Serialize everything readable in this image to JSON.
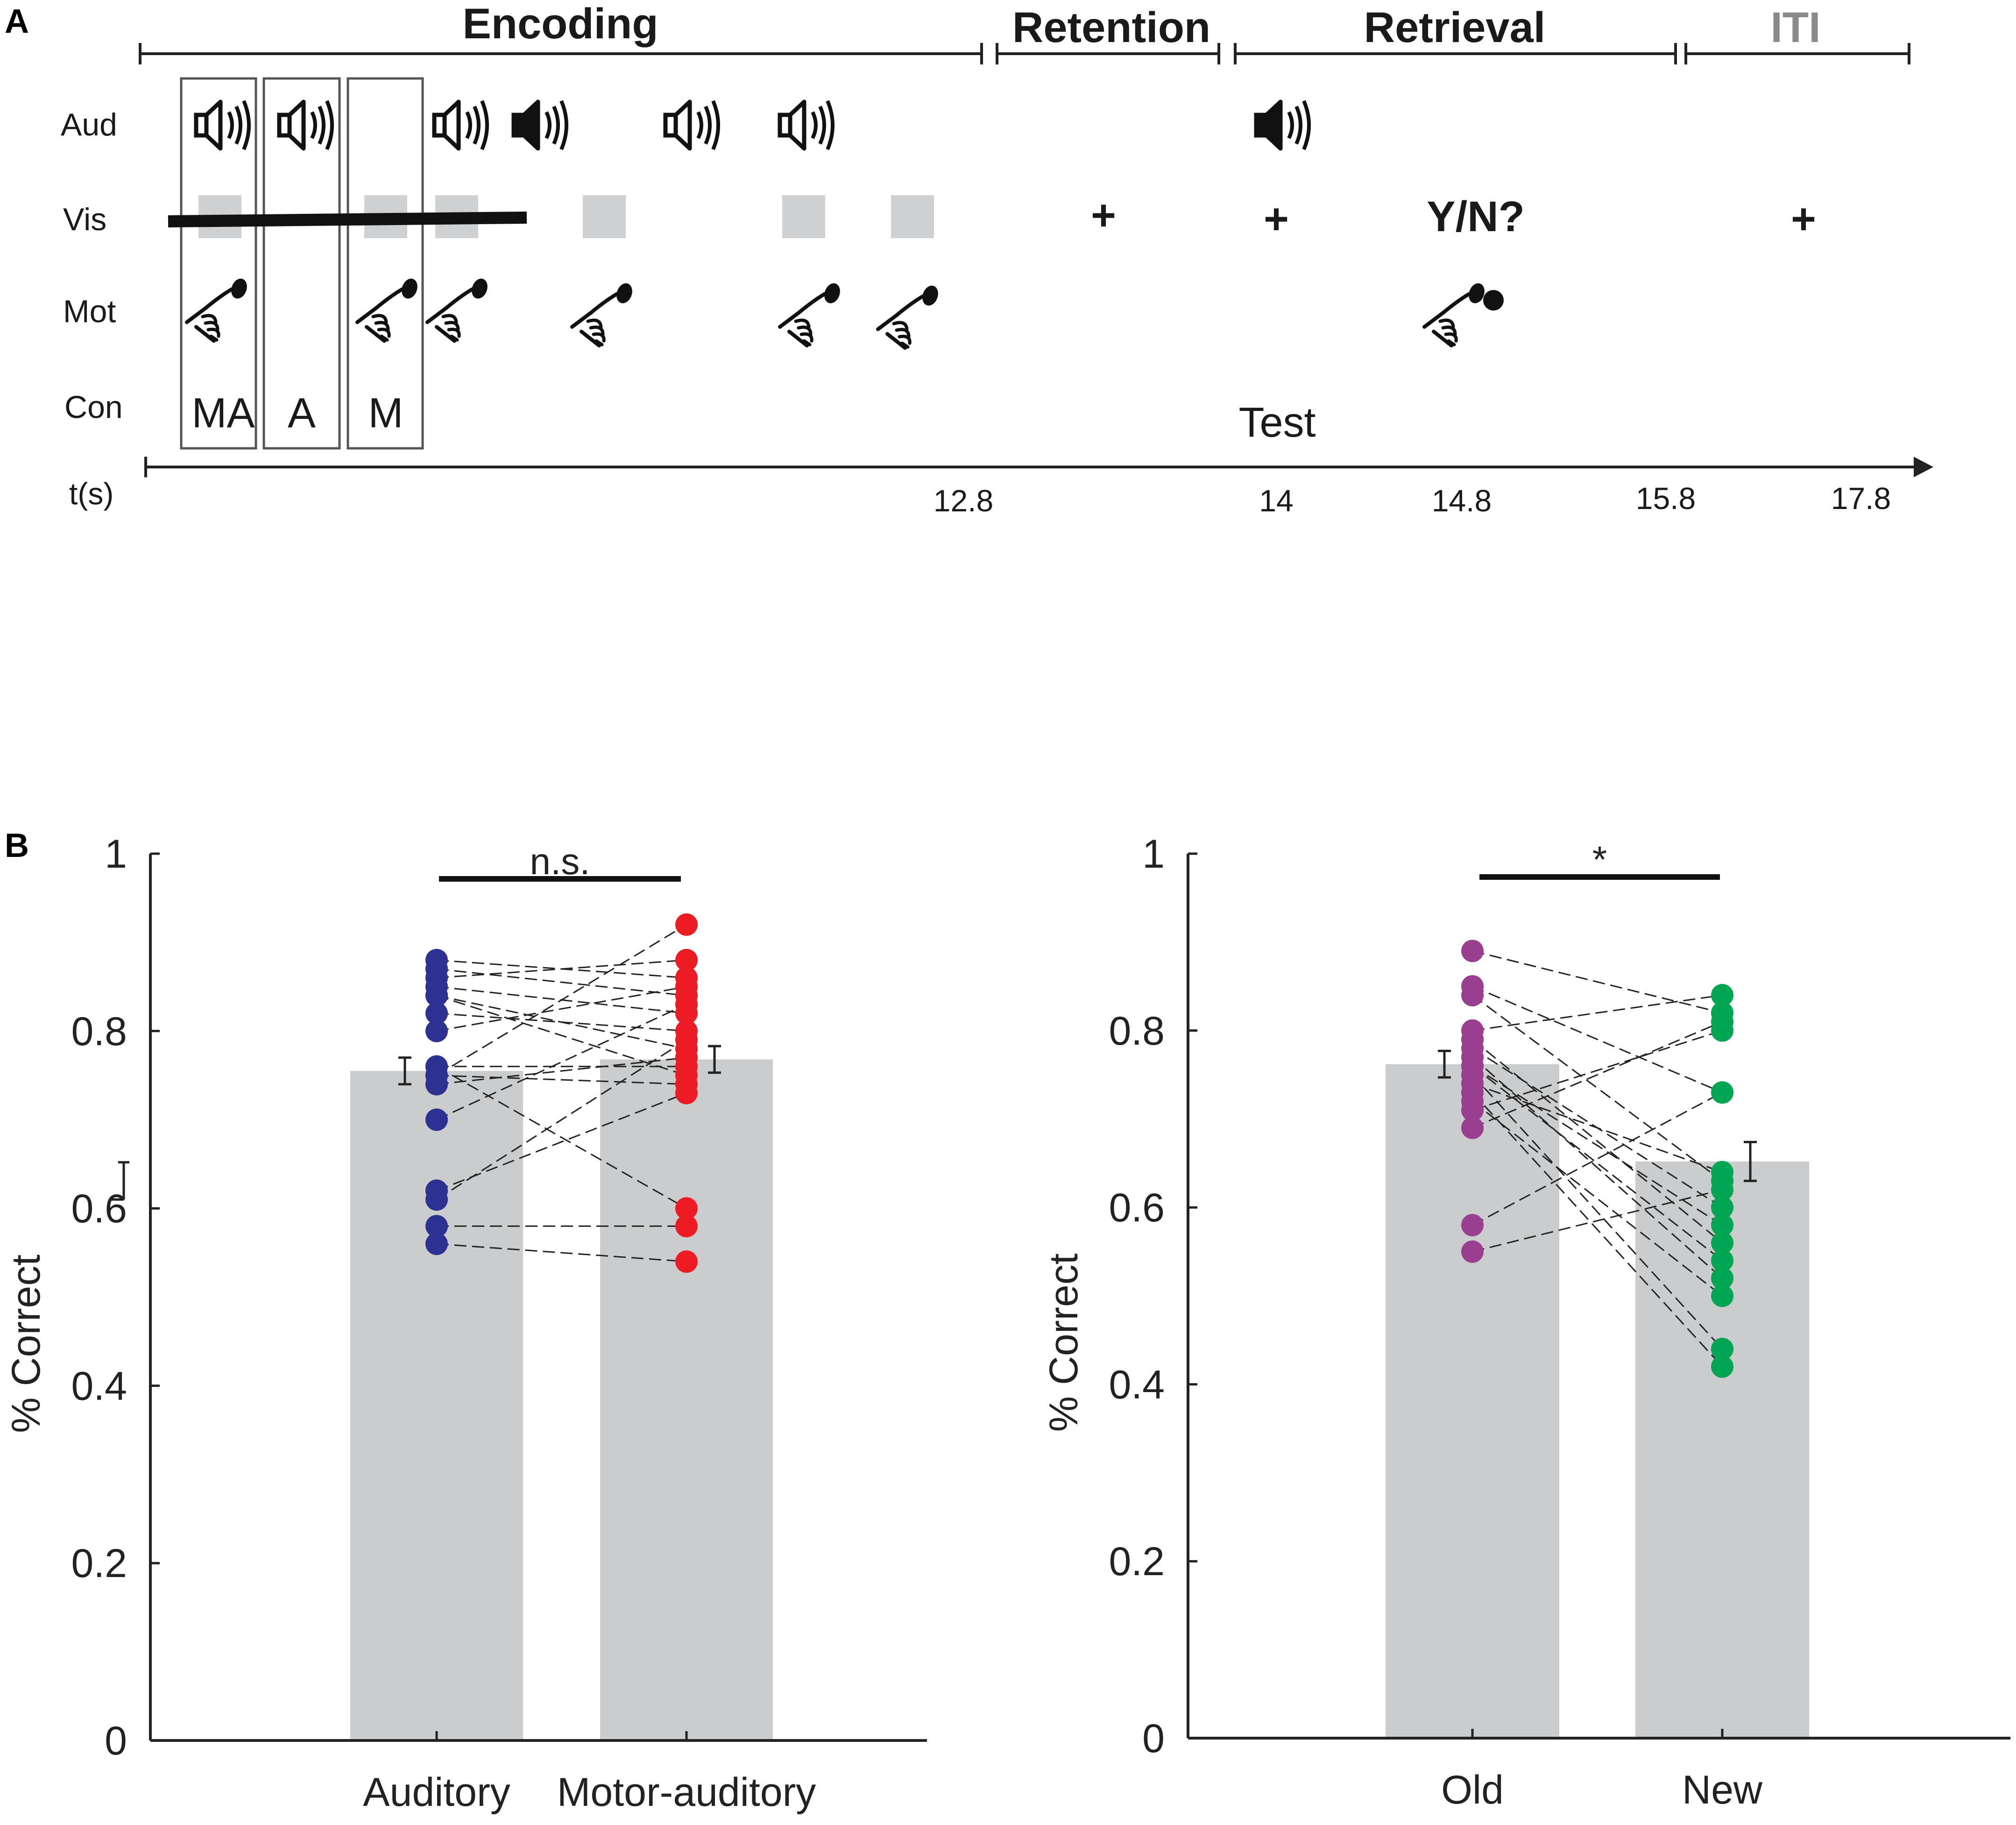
{
  "panel_a": {
    "label": "A",
    "phases": {
      "encoding": "Encoding",
      "retention": "Retention",
      "retrieval": "Retrieval",
      "iti": "ITI"
    },
    "rows": {
      "aud": "Aud",
      "vis": "Vis",
      "mot": "Mot",
      "con": "Con"
    },
    "conditions": [
      "MA",
      "A",
      "M"
    ],
    "test_label": "Test",
    "question": "Y/N?",
    "fixation": "+",
    "time_label": "t(s)",
    "time_ticks": [
      "12.8",
      "14",
      "14.8",
      "15.8",
      "17.8"
    ],
    "icons": [
      "speaker-icon",
      "pressing-hand-icon",
      "gray-square-icon"
    ]
  },
  "panel_b": {
    "label": "B"
  },
  "chart_data": [
    {
      "type": "bar",
      "title": "",
      "ylabel": "% Correct",
      "xlabel": "",
      "ylim": [
        0,
        1
      ],
      "yticks": [
        "0",
        "0.2",
        "0.4",
        "0.6",
        "0.8",
        "1"
      ],
      "categories": [
        "Auditory",
        "Motor-auditory"
      ],
      "means": [
        0.755,
        0.768
      ],
      "sem": [
        0.015,
        0.015
      ],
      "significance": "n.s.",
      "colors": [
        "#2c3192",
        "#ed1c24"
      ],
      "bar_color": "#cbcccd",
      "subjects": [
        [
          0.88,
          0.86
        ],
        [
          0.87,
          0.84
        ],
        [
          0.86,
          0.88
        ],
        [
          0.85,
          0.82
        ],
        [
          0.84,
          0.78
        ],
        [
          0.82,
          0.8
        ],
        [
          0.8,
          0.85
        ],
        [
          0.76,
          0.76
        ],
        [
          0.75,
          0.74
        ],
        [
          0.74,
          0.77
        ],
        [
          0.7,
          0.83
        ],
        [
          0.62,
          0.73
        ],
        [
          0.61,
          0.79
        ],
        [
          0.58,
          0.58
        ],
        [
          0.56,
          0.54
        ],
        [
          0.76,
          0.6
        ],
        [
          0.75,
          0.92
        ],
        [
          0.84,
          0.75
        ]
      ]
    },
    {
      "type": "bar",
      "title": "",
      "ylabel": "% Correct",
      "xlabel": "",
      "ylim": [
        0,
        1
      ],
      "yticks": [
        "0",
        "0.2",
        "0.4",
        "0.6",
        "0.8",
        "1"
      ],
      "categories": [
        "Old",
        "New"
      ],
      "means": [
        0.762,
        0.652
      ],
      "sem": [
        0.015,
        0.022
      ],
      "significance": "*",
      "colors": [
        "#9a3f8f",
        "#00a651"
      ],
      "bar_color": "#cbcccd",
      "subjects": [
        [
          0.89,
          0.82
        ],
        [
          0.85,
          0.73
        ],
        [
          0.84,
          0.63
        ],
        [
          0.8,
          0.84
        ],
        [
          0.79,
          0.56
        ],
        [
          0.78,
          0.6
        ],
        [
          0.77,
          0.52
        ],
        [
          0.76,
          0.54
        ],
        [
          0.75,
          0.44
        ],
        [
          0.74,
          0.64
        ],
        [
          0.73,
          0.42
        ],
        [
          0.72,
          0.5
        ],
        [
          0.69,
          0.81
        ],
        [
          0.58,
          0.73
        ],
        [
          0.55,
          0.62
        ],
        [
          0.76,
          0.58
        ],
        [
          0.71,
          0.8
        ]
      ]
    }
  ]
}
